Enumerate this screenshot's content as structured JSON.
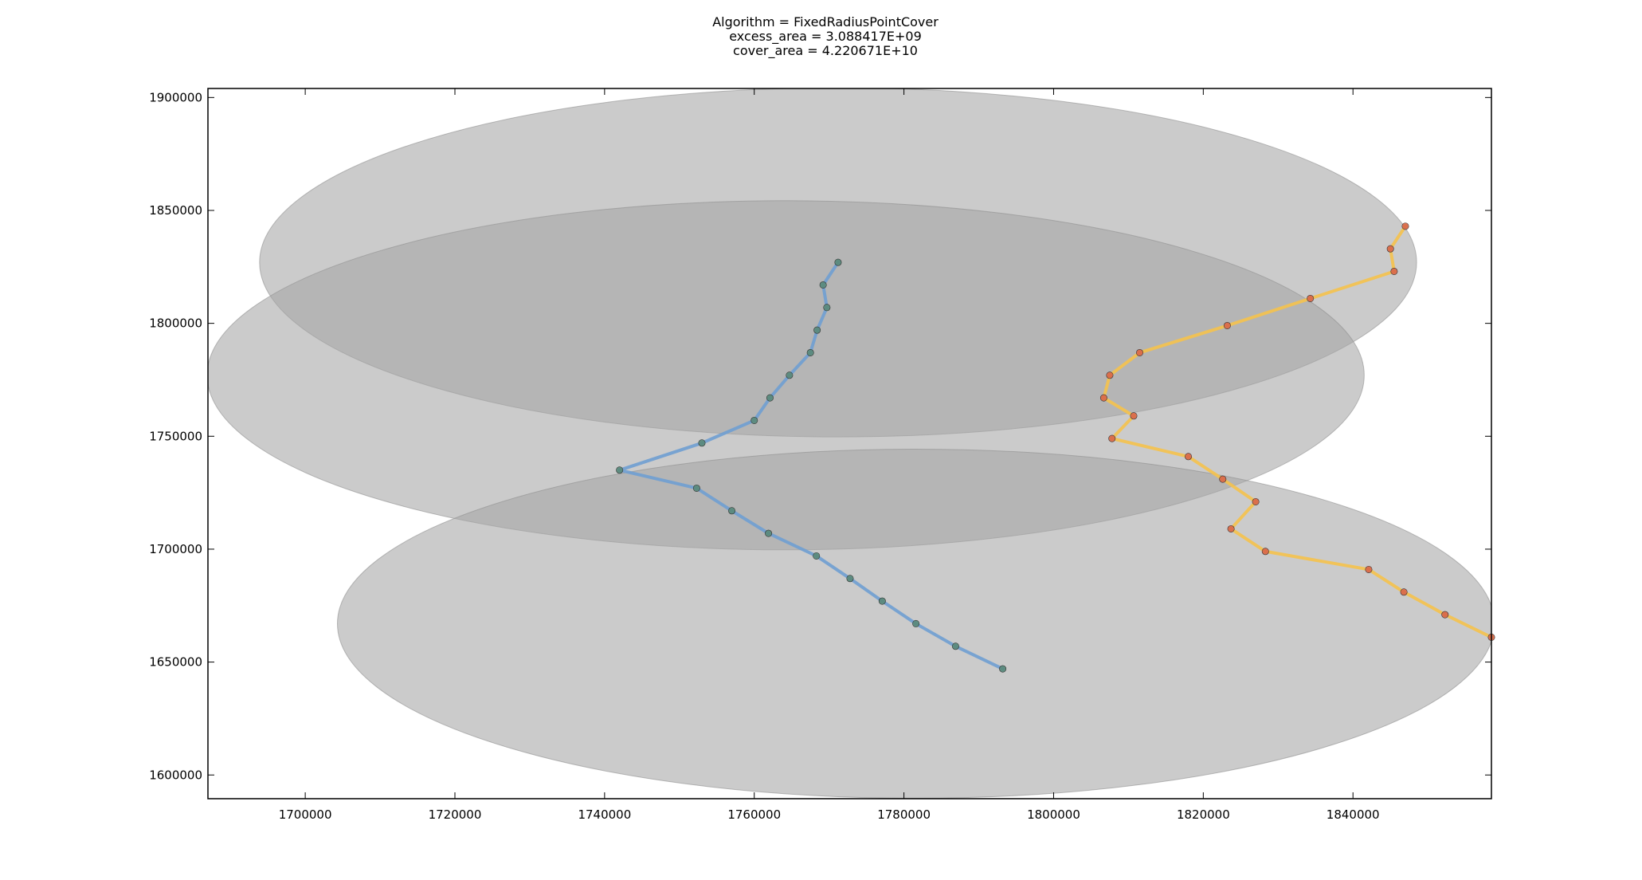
{
  "chart_data": {
    "type": "scatter",
    "title_lines": [
      "Algorithm = FixedRadiusPointCover",
      "excess_area = 3.088417E+09",
      "cover_area = 4.220671E+10"
    ],
    "xlabel": "",
    "ylabel": "",
    "xlim": [
      1687000,
      1858500
    ],
    "ylim": [
      1589500,
      1904000
    ],
    "x_ticks": [
      1700000,
      1720000,
      1740000,
      1760000,
      1780000,
      1800000,
      1820000,
      1840000
    ],
    "y_ticks": [
      1600000,
      1650000,
      1700000,
      1750000,
      1800000,
      1850000,
      1900000
    ],
    "grid": false,
    "legend": "none",
    "cover_ellipses": [
      {
        "cx": 1771200,
        "cy": 1827000,
        "rx": 77300,
        "ry": 77300
      },
      {
        "cx": 1764200,
        "cy": 1777000,
        "rx": 77300,
        "ry": 77300
      },
      {
        "cx": 1781600,
        "cy": 1667000,
        "rx": 77300,
        "ry": 77300
      }
    ],
    "cover_color": "#a6a6a6",
    "series": [
      {
        "color": "#6f9fd2",
        "marker_color": "#5b8a7c",
        "x": [
          1771200,
          1769200,
          1769700,
          1768400,
          1767500,
          1764700,
          1762100,
          1760000,
          1753000,
          1742000,
          1752300,
          1757000,
          1761900,
          1768300,
          1772800,
          1777100,
          1781600,
          1786900,
          1793200
        ],
        "y": [
          1827000,
          1817000,
          1807000,
          1797000,
          1787000,
          1777000,
          1767000,
          1757000,
          1747000,
          1735000,
          1727000,
          1717000,
          1707000,
          1697000,
          1687000,
          1677000,
          1667000,
          1657000,
          1647000
        ]
      },
      {
        "color": "#f5c24c",
        "marker_color": "#d96a4a",
        "x": [
          1847000,
          1845000,
          1845500,
          1834300,
          1823200,
          1811500,
          1807500,
          1806700,
          1810700,
          1807800,
          1818000,
          1822600,
          1827000,
          1823700,
          1828300,
          1842100,
          1846800,
          1852300,
          1858500
        ],
        "y": [
          1843000,
          1833000,
          1823000,
          1811000,
          1799000,
          1787000,
          1777000,
          1767000,
          1759000,
          1749000,
          1741000,
          1731000,
          1721000,
          1709000,
          1699000,
          1691000,
          1681000,
          1671000,
          1661000
        ]
      }
    ]
  }
}
